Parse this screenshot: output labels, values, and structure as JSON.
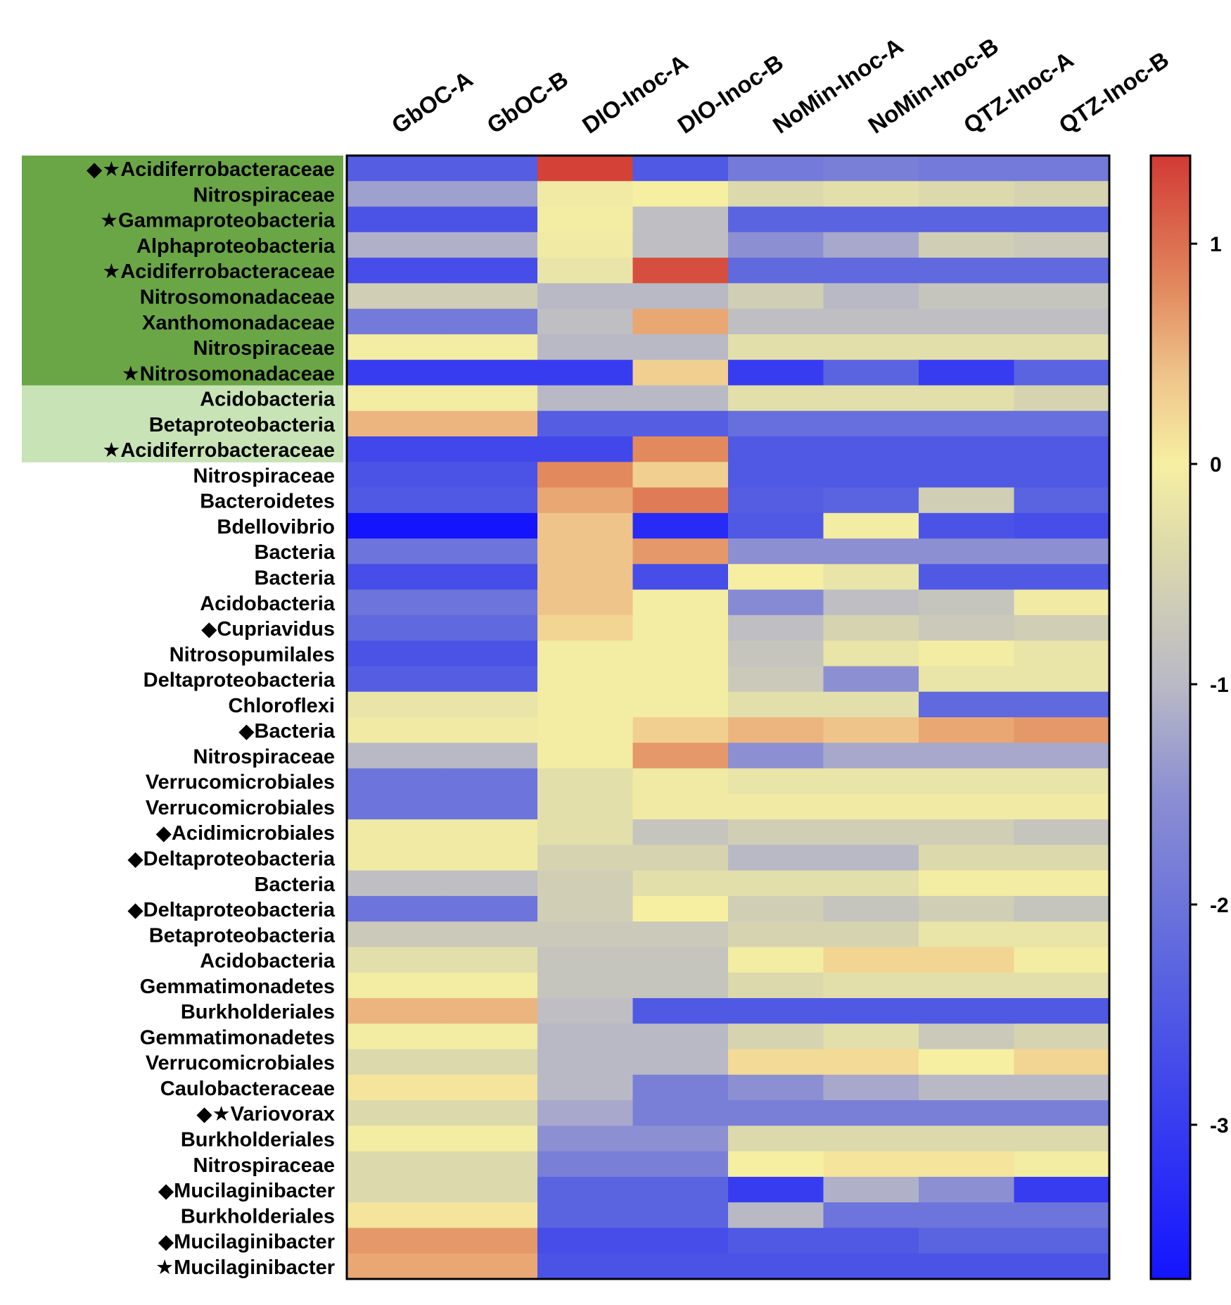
{
  "chart_data": {
    "type": "heatmap",
    "columns": [
      "GbOC-A",
      "GbOC-B",
      "DIO-Inoc-A",
      "DIO-Inoc-B",
      "NoMin-Inoc-A",
      "NoMin-Inoc-B",
      "QTZ-Inoc-A",
      "QTZ-Inoc-B"
    ],
    "rows": [
      {
        "label": "Acidiferrobacteraceae",
        "markers": "◆★",
        "group": "dark",
        "values": [
          -2.4,
          -2.4,
          1.35,
          -2.5,
          -1.9,
          -1.8,
          -1.9,
          -1.9
        ]
      },
      {
        "label": "Nitrospiraceae",
        "markers": "",
        "group": "dark",
        "values": [
          -1.3,
          -1.3,
          -0.1,
          0.0,
          -0.4,
          -0.3,
          -0.4,
          -0.5
        ]
      },
      {
        "label": "Gammaproteobacteria",
        "markers": "★",
        "group": "dark",
        "values": [
          -2.6,
          -2.6,
          -0.05,
          -0.9,
          -2.3,
          -2.3,
          -2.3,
          -2.3
        ]
      },
      {
        "label": "Alphaproteobacteria",
        "markers": "",
        "group": "dark",
        "values": [
          -1.1,
          -1.1,
          -0.1,
          -0.9,
          -1.5,
          -1.2,
          -0.6,
          -0.7
        ]
      },
      {
        "label": "Acidiferrobacteraceae",
        "markers": "★",
        "group": "dark",
        "values": [
          -2.7,
          -2.7,
          -0.2,
          1.25,
          -2.2,
          -2.2,
          -2.2,
          -2.2
        ]
      },
      {
        "label": "Nitrosomonadaceae",
        "markers": "",
        "group": "dark",
        "values": [
          -0.6,
          -0.6,
          -1.0,
          -1.0,
          -0.6,
          -1.0,
          -0.8,
          -0.8
        ]
      },
      {
        "label": "Xanthomonadaceae",
        "markers": "",
        "group": "dark",
        "values": [
          -1.9,
          -1.9,
          -0.9,
          0.6,
          -0.9,
          -0.9,
          -0.9,
          -0.9
        ]
      },
      {
        "label": "Nitrospiraceae",
        "markers": "",
        "group": "dark",
        "values": [
          -0.05,
          -0.05,
          -1.0,
          -1.0,
          -0.3,
          -0.3,
          -0.3,
          -0.3
        ]
      },
      {
        "label": "Nitrosomonadaceae",
        "markers": "★",
        "group": "dark",
        "values": [
          -3.0,
          -3.0,
          -3.0,
          0.3,
          -3.0,
          -2.3,
          -3.0,
          -2.3
        ]
      },
      {
        "label": "Acidobacteria",
        "markers": "",
        "group": "light",
        "values": [
          -0.05,
          -0.05,
          -1.0,
          -1.0,
          -0.3,
          -0.3,
          -0.3,
          -0.5
        ]
      },
      {
        "label": "Betaproteobacteria",
        "markers": "",
        "group": "light",
        "values": [
          0.5,
          0.5,
          -2.4,
          -2.4,
          -2.1,
          -2.1,
          -2.1,
          -2.1
        ]
      },
      {
        "label": "Acidiferrobacteraceae",
        "markers": "★",
        "group": "light",
        "values": [
          -2.8,
          -2.8,
          -2.8,
          0.8,
          -2.5,
          -2.5,
          -2.5,
          -2.5
        ]
      },
      {
        "label": "Nitrospiraceae",
        "markers": "",
        "group": "",
        "values": [
          -2.6,
          -2.6,
          0.8,
          0.3,
          -2.5,
          -2.5,
          -2.5,
          -2.5
        ]
      },
      {
        "label": "Bacteroidetes",
        "markers": "",
        "group": "",
        "values": [
          -2.5,
          -2.5,
          0.6,
          0.9,
          -2.4,
          -2.3,
          -0.6,
          -2.3
        ]
      },
      {
        "label": "Bdellovibrio",
        "markers": "",
        "group": "",
        "values": [
          -3.9,
          -3.9,
          0.4,
          -3.3,
          -2.5,
          -0.05,
          -2.6,
          -2.7
        ]
      },
      {
        "label": "Bacteria",
        "markers": "",
        "group": "",
        "values": [
          -2.0,
          -2.0,
          0.4,
          0.7,
          -1.5,
          -1.5,
          -1.5,
          -1.5
        ]
      },
      {
        "label": "Bacteria",
        "markers": "",
        "group": "",
        "values": [
          -2.7,
          -2.7,
          0.4,
          -2.7,
          0.0,
          -0.2,
          -2.5,
          -2.5
        ]
      },
      {
        "label": "Acidobacteria",
        "markers": "",
        "group": "",
        "values": [
          -2.0,
          -2.0,
          0.4,
          -0.05,
          -1.6,
          -0.9,
          -0.8,
          -0.1
        ]
      },
      {
        "label": "Cupriavidus",
        "markers": "◆",
        "group": "",
        "values": [
          -2.2,
          -2.2,
          0.25,
          -0.05,
          -0.9,
          -0.5,
          -0.7,
          -0.6
        ]
      },
      {
        "label": "Nitrosopumilales",
        "markers": "",
        "group": "",
        "values": [
          -2.6,
          -2.6,
          -0.05,
          -0.05,
          -0.8,
          -0.2,
          -0.05,
          -0.2
        ]
      },
      {
        "label": "Deltaproteobacteria",
        "markers": "",
        "group": "",
        "values": [
          -2.4,
          -2.4,
          -0.05,
          -0.05,
          -0.7,
          -1.5,
          -0.2,
          -0.2
        ]
      },
      {
        "label": "Chloroflexi",
        "markers": "",
        "group": "",
        "values": [
          -0.2,
          -0.2,
          -0.05,
          -0.05,
          -0.3,
          -0.3,
          -2.2,
          -2.2
        ]
      },
      {
        "label": "Bacteria",
        "markers": "◆",
        "group": "",
        "values": [
          -0.1,
          -0.1,
          -0.05,
          0.3,
          0.5,
          0.4,
          0.6,
          0.7
        ]
      },
      {
        "label": "Nitrospiraceae",
        "markers": "",
        "group": "",
        "values": [
          -1.0,
          -1.0,
          -0.05,
          0.7,
          -1.5,
          -1.2,
          -1.2,
          -1.2
        ]
      },
      {
        "label": "Verrucomicrobiales",
        "markers": "",
        "group": "",
        "values": [
          -2.0,
          -2.0,
          -0.3,
          -0.1,
          -0.2,
          -0.2,
          -0.2,
          -0.2
        ]
      },
      {
        "label": "Verrucomicrobiales",
        "markers": "",
        "group": "",
        "values": [
          -2.0,
          -2.0,
          -0.3,
          -0.1,
          -0.1,
          -0.1,
          -0.1,
          -0.1
        ]
      },
      {
        "label": "Acidimicrobiales",
        "markers": "◆",
        "group": "",
        "values": [
          -0.1,
          -0.1,
          -0.3,
          -0.8,
          -0.6,
          -0.6,
          -0.6,
          -0.8
        ]
      },
      {
        "label": "Deltaproteobacteria",
        "markers": "◆",
        "group": "",
        "values": [
          -0.1,
          -0.1,
          -0.5,
          -0.5,
          -1.0,
          -1.0,
          -0.4,
          -0.4
        ]
      },
      {
        "label": "Bacteria",
        "markers": "",
        "group": "",
        "values": [
          -0.9,
          -0.9,
          -0.6,
          -0.3,
          -0.3,
          -0.3,
          -0.05,
          -0.05
        ]
      },
      {
        "label": "Deltaproteobacteria",
        "markers": "◆",
        "group": "",
        "values": [
          -2.0,
          -2.0,
          -0.6,
          0.0,
          -0.6,
          -0.8,
          -0.6,
          -0.8
        ]
      },
      {
        "label": "Betaproteobacteria",
        "markers": "",
        "group": "",
        "values": [
          -0.7,
          -0.7,
          -0.7,
          -0.7,
          -0.5,
          -0.5,
          -0.2,
          -0.2
        ]
      },
      {
        "label": "Acidobacteria",
        "markers": "",
        "group": "",
        "values": [
          -0.3,
          -0.3,
          -0.8,
          -0.8,
          -0.05,
          0.25,
          0.25,
          -0.05
        ]
      },
      {
        "label": "Gemmatimonadetes",
        "markers": "",
        "group": "",
        "values": [
          -0.05,
          -0.05,
          -0.8,
          -0.8,
          -0.4,
          -0.3,
          -0.3,
          -0.3
        ]
      },
      {
        "label": "Burkholderiales",
        "markers": "",
        "group": "",
        "values": [
          0.5,
          0.5,
          -0.9,
          -2.5,
          -2.5,
          -2.5,
          -2.5,
          -2.5
        ]
      },
      {
        "label": "Gemmatimonadetes",
        "markers": "",
        "group": "",
        "values": [
          -0.05,
          -0.05,
          -1.0,
          -1.0,
          -0.5,
          -0.3,
          -0.7,
          -0.5
        ]
      },
      {
        "label": "Verrucomicrobiales",
        "markers": "",
        "group": "",
        "values": [
          -0.4,
          -0.4,
          -1.0,
          -1.0,
          0.2,
          0.2,
          0.0,
          0.25
        ]
      },
      {
        "label": "Caulobacteraceae",
        "markers": "",
        "group": "",
        "values": [
          0.1,
          0.1,
          -1.0,
          -1.8,
          -1.5,
          -1.2,
          -1.0,
          -1.0
        ]
      },
      {
        "label": "Variovorax",
        "markers": "◆★",
        "group": "",
        "values": [
          -0.4,
          -0.4,
          -1.2,
          -1.8,
          -1.8,
          -1.8,
          -1.8,
          -1.8
        ]
      },
      {
        "label": "Burkholderiales",
        "markers": "",
        "group": "",
        "values": [
          -0.05,
          -0.05,
          -1.5,
          -1.5,
          -0.4,
          -0.4,
          -0.4,
          -0.4
        ]
      },
      {
        "label": "Nitrospiraceae",
        "markers": "",
        "group": "",
        "values": [
          -0.4,
          -0.4,
          -1.8,
          -1.8,
          0.0,
          0.1,
          0.1,
          -0.05
        ]
      },
      {
        "label": "Mucilaginibacter",
        "markers": "◆",
        "group": "",
        "values": [
          -0.4,
          -0.4,
          -2.3,
          -2.3,
          -3.0,
          -1.1,
          -1.5,
          -3.0
        ]
      },
      {
        "label": "Burkholderiales",
        "markers": "",
        "group": "",
        "values": [
          0.1,
          0.1,
          -2.3,
          -2.3,
          -1.0,
          -2.0,
          -2.0,
          -2.0
        ]
      },
      {
        "label": "Mucilaginibacter",
        "markers": "◆",
        "group": "",
        "values": [
          0.7,
          0.7,
          -2.7,
          -2.7,
          -2.5,
          -2.5,
          -2.3,
          -2.3
        ]
      },
      {
        "label": "Mucilaginibacter",
        "markers": "★",
        "group": "",
        "values": [
          0.6,
          0.6,
          -2.6,
          -2.6,
          -2.6,
          -2.6,
          -2.6,
          -2.6
        ]
      }
    ],
    "colorbar": {
      "min": -3.7,
      "max": 1.4,
      "ticks": [
        1,
        0,
        -1,
        -2,
        -3
      ],
      "tick_labels": [
        "1",
        "0",
        "-1",
        "-2",
        "-3"
      ],
      "stops": [
        {
          "value": -3.7,
          "color": "#1414ff"
        },
        {
          "value": -2.3,
          "color": "#5a64e0"
        },
        {
          "value": -1.5,
          "color": "#8c8fd2"
        },
        {
          "value": -1.0,
          "color": "#b9b9c6"
        },
        {
          "value": -0.4,
          "color": "#dcd9ac"
        },
        {
          "value": 0.0,
          "color": "#f6efa2"
        },
        {
          "value": 0.4,
          "color": "#efc48a"
        },
        {
          "value": 0.8,
          "color": "#e2895e"
        },
        {
          "value": 1.4,
          "color": "#d23a34"
        }
      ]
    },
    "group_colors": {
      "dark": "#6aa646",
      "light": "#c8e3b5"
    }
  }
}
